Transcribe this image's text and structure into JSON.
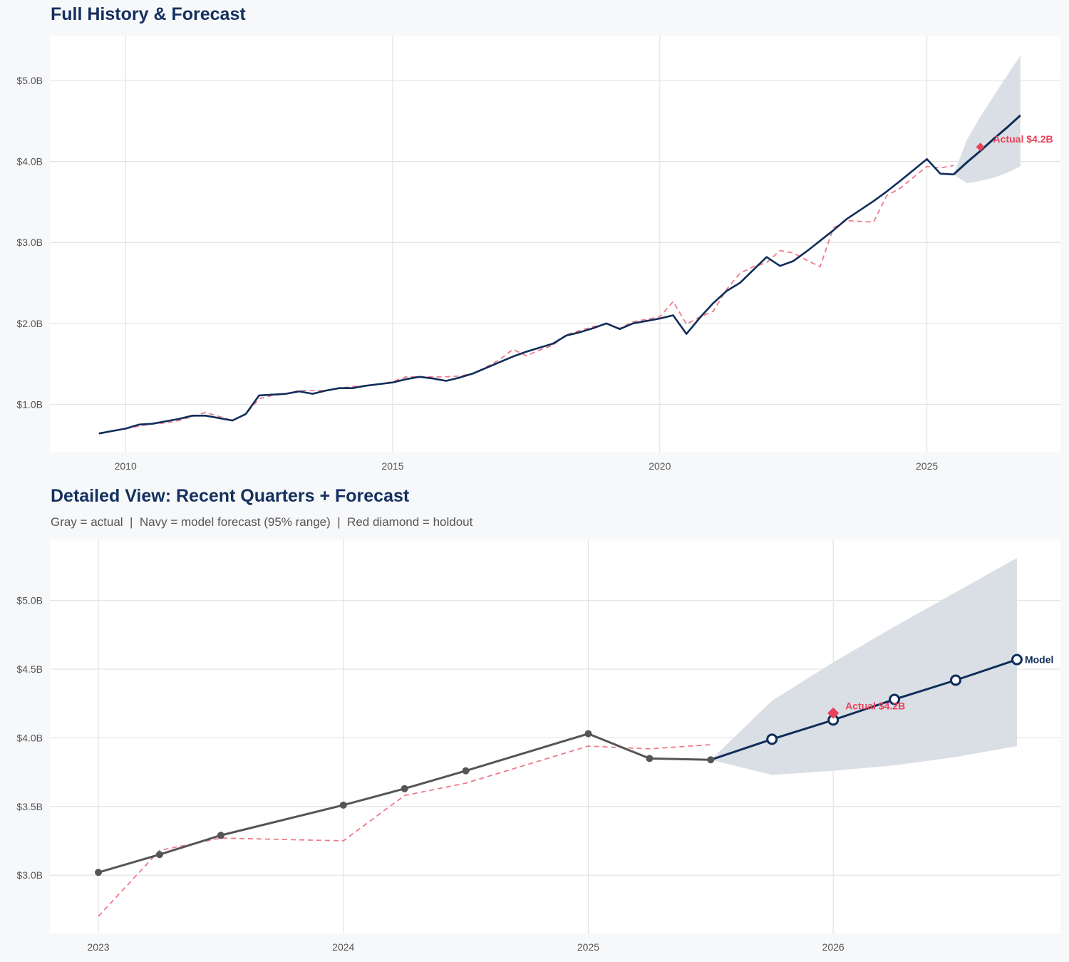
{
  "colors": {
    "navy": "#0f2d5a",
    "gray": "#555555",
    "fit": "#ee7a8a",
    "holdout": "#e8415a",
    "band": "#dadfe5",
    "grid": "#e3e3e3"
  },
  "chart_data": [
    {
      "type": "line",
      "title": "Full History & Forecast",
      "xlim": [
        "2008-08",
        "2027-07"
      ],
      "ylim": [
        0.405,
        5.555
      ],
      "x_ticks": [
        {
          "value": "2010-01",
          "label": "2010"
        },
        {
          "value": "2015-01",
          "label": "2015"
        },
        {
          "value": "2020-01",
          "label": "2020"
        },
        {
          "value": "2025-01",
          "label": "2025"
        }
      ],
      "y_ticks": [
        {
          "value": 1.0,
          "label": "$1.0B"
        },
        {
          "value": 2.0,
          "label": "$2.0B"
        },
        {
          "value": 3.0,
          "label": "$3.0B"
        },
        {
          "value": 4.0,
          "label": "$4.0B"
        },
        {
          "value": 5.0,
          "label": "$5.0B"
        }
      ],
      "grid": true,
      "actual_color": "navy",
      "actual_markers": false,
      "actual": [
        [
          "2009-07",
          0.64
        ],
        [
          "2009-10",
          0.67
        ],
        [
          "2010-01",
          0.7
        ],
        [
          "2010-04",
          0.75
        ],
        [
          "2010-07",
          0.76
        ],
        [
          "2010-10",
          0.79
        ],
        [
          "2011-01",
          0.82
        ],
        [
          "2011-04",
          0.86
        ],
        [
          "2011-07",
          0.86
        ],
        [
          "2011-10",
          0.83
        ],
        [
          "2012-01",
          0.8
        ],
        [
          "2012-04",
          0.88
        ],
        [
          "2012-07",
          1.11
        ],
        [
          "2012-10",
          1.12
        ],
        [
          "2013-01",
          1.13
        ],
        [
          "2013-04",
          1.16
        ],
        [
          "2013-07",
          1.13
        ],
        [
          "2013-10",
          1.17
        ],
        [
          "2014-01",
          1.2
        ],
        [
          "2014-04",
          1.2
        ],
        [
          "2014-07",
          1.23
        ],
        [
          "2014-10",
          1.25
        ],
        [
          "2015-01",
          1.27
        ],
        [
          "2015-04",
          1.31
        ],
        [
          "2015-07",
          1.34
        ],
        [
          "2015-10",
          1.32
        ],
        [
          "2016-01",
          1.29
        ],
        [
          "2016-04",
          1.33
        ],
        [
          "2016-07",
          1.38
        ],
        [
          "2016-10",
          1.45
        ],
        [
          "2017-01",
          1.52
        ],
        [
          "2017-04",
          1.59
        ],
        [
          "2017-07",
          1.65
        ],
        [
          "2017-10",
          1.7
        ],
        [
          "2018-01",
          1.75
        ],
        [
          "2018-04",
          1.85
        ],
        [
          "2018-07",
          1.89
        ],
        [
          "2018-10",
          1.94
        ],
        [
          "2019-01",
          2.0
        ],
        [
          "2019-04",
          1.93
        ],
        [
          "2019-07",
          2.0
        ],
        [
          "2019-10",
          2.03
        ],
        [
          "2020-01",
          2.06
        ],
        [
          "2020-04",
          2.1
        ],
        [
          "2020-07",
          1.87
        ],
        [
          "2020-10",
          2.07
        ],
        [
          "2021-01",
          2.25
        ],
        [
          "2021-04",
          2.4
        ],
        [
          "2021-07",
          2.5
        ],
        [
          "2021-10",
          2.66
        ],
        [
          "2022-01",
          2.82
        ],
        [
          "2022-04",
          2.71
        ],
        [
          "2022-07",
          2.77
        ],
        [
          "2022-10",
          2.89
        ],
        [
          "2023-01",
          3.02
        ],
        [
          "2023-04",
          3.15
        ],
        [
          "2023-07",
          3.29
        ],
        [
          "2024-01",
          3.51
        ],
        [
          "2024-04",
          3.63
        ],
        [
          "2024-07",
          3.76
        ],
        [
          "2025-01",
          4.03
        ],
        [
          "2025-04",
          3.85
        ],
        [
          "2025-07",
          3.84
        ]
      ],
      "fitted": [
        [
          "2010-01",
          0.7
        ],
        [
          "2010-04",
          0.73
        ],
        [
          "2010-07",
          0.76
        ],
        [
          "2010-10",
          0.77
        ],
        [
          "2011-01",
          0.8
        ],
        [
          "2011-04",
          0.85
        ],
        [
          "2011-07",
          0.9
        ],
        [
          "2011-10",
          0.85
        ],
        [
          "2012-01",
          0.8
        ],
        [
          "2012-04",
          0.88
        ],
        [
          "2012-07",
          1.07
        ],
        [
          "2012-10",
          1.11
        ],
        [
          "2013-01",
          1.13
        ],
        [
          "2013-04",
          1.17
        ],
        [
          "2013-07",
          1.17
        ],
        [
          "2013-10",
          1.17
        ],
        [
          "2014-01",
          1.2
        ],
        [
          "2014-04",
          1.22
        ],
        [
          "2014-07",
          1.23
        ],
        [
          "2014-10",
          1.25
        ],
        [
          "2015-01",
          1.28
        ],
        [
          "2015-04",
          1.34
        ],
        [
          "2015-07",
          1.34
        ],
        [
          "2015-10",
          1.34
        ],
        [
          "2016-01",
          1.34
        ],
        [
          "2016-04",
          1.35
        ],
        [
          "2016-07",
          1.38
        ],
        [
          "2016-10",
          1.46
        ],
        [
          "2017-01",
          1.55
        ],
        [
          "2017-04",
          1.68
        ],
        [
          "2017-07",
          1.6
        ],
        [
          "2017-10",
          1.67
        ],
        [
          "2018-01",
          1.73
        ],
        [
          "2018-04",
          1.86
        ],
        [
          "2018-07",
          1.91
        ],
        [
          "2018-10",
          1.96
        ],
        [
          "2019-01",
          1.99
        ],
        [
          "2019-04",
          1.94
        ],
        [
          "2019-07",
          2.02
        ],
        [
          "2019-10",
          2.05
        ],
        [
          "2020-01",
          2.08
        ],
        [
          "2020-04",
          2.27
        ],
        [
          "2020-07",
          1.99
        ],
        [
          "2020-10",
          2.08
        ],
        [
          "2021-01",
          2.15
        ],
        [
          "2021-04",
          2.42
        ],
        [
          "2021-07",
          2.62
        ],
        [
          "2021-10",
          2.7
        ],
        [
          "2022-01",
          2.75
        ],
        [
          "2022-04",
          2.9
        ],
        [
          "2022-07",
          2.87
        ],
        [
          "2022-10",
          2.78
        ],
        [
          "2023-01",
          2.7
        ],
        [
          "2023-04",
          3.18
        ],
        [
          "2023-07",
          3.27
        ],
        [
          "2024-01",
          3.25
        ],
        [
          "2024-04",
          3.58
        ],
        [
          "2024-07",
          3.67
        ],
        [
          "2025-01",
          3.94
        ],
        [
          "2025-04",
          3.92
        ],
        [
          "2025-07",
          3.95
        ]
      ],
      "forecast": {
        "x": [
          "2025-07",
          "2025-10",
          "2026-01",
          "2026-04",
          "2026-07",
          "2026-10"
        ],
        "y": [
          3.84,
          3.99,
          4.13,
          4.28,
          4.42,
          4.57
        ],
        "lower": [
          3.84,
          3.73,
          3.76,
          3.8,
          3.86,
          3.94
        ],
        "upper": [
          3.84,
          4.27,
          4.55,
          4.81,
          5.06,
          5.31
        ],
        "markers": false
      },
      "holdout": {
        "x": "2026-01",
        "y": 4.18,
        "label": "Actual $4.2B"
      }
    },
    {
      "type": "line",
      "title": "Detailed View: Recent Quarters + Forecast",
      "subtitle": "Gray = actual  |  Navy = model forecast (95% range)  |  Red diamond = holdout",
      "xlim": [
        "2022-10-20",
        "2026-12-05"
      ],
      "ylim": [
        2.575,
        5.445
      ],
      "x_ticks": [
        {
          "value": "2023-01",
          "label": "2023"
        },
        {
          "value": "2024-01",
          "label": "2024"
        },
        {
          "value": "2025-01",
          "label": "2025"
        },
        {
          "value": "2026-01",
          "label": "2026"
        }
      ],
      "y_ticks": [
        {
          "value": 3.0,
          "label": "$3.0B"
        },
        {
          "value": 3.5,
          "label": "$3.5B"
        },
        {
          "value": 4.0,
          "label": "$4.0B"
        },
        {
          "value": 4.5,
          "label": "$4.5B"
        },
        {
          "value": 5.0,
          "label": "$5.0B"
        }
      ],
      "grid": true,
      "actual_color": "gray",
      "actual_markers": true,
      "actual": [
        [
          "2023-01",
          3.02
        ],
        [
          "2023-04",
          3.15
        ],
        [
          "2023-07",
          3.29
        ],
        [
          "2024-01",
          3.51
        ],
        [
          "2024-04",
          3.63
        ],
        [
          "2024-07",
          3.76
        ],
        [
          "2025-01",
          4.03
        ],
        [
          "2025-04",
          3.85
        ],
        [
          "2025-07",
          3.84
        ]
      ],
      "fitted": [
        [
          "2023-01",
          2.7
        ],
        [
          "2023-04",
          3.18
        ],
        [
          "2023-07",
          3.27
        ],
        [
          "2024-01",
          3.25
        ],
        [
          "2024-04",
          3.58
        ],
        [
          "2024-07",
          3.67
        ],
        [
          "2025-01",
          3.94
        ],
        [
          "2025-04",
          3.92
        ],
        [
          "2025-07",
          3.95
        ]
      ],
      "forecast": {
        "x": [
          "2025-07",
          "2025-10",
          "2026-01",
          "2026-04",
          "2026-07",
          "2026-10"
        ],
        "y": [
          3.84,
          3.99,
          4.13,
          4.28,
          4.42,
          4.57
        ],
        "lower": [
          3.84,
          3.73,
          3.76,
          3.8,
          3.86,
          3.94
        ],
        "upper": [
          3.84,
          4.27,
          4.55,
          4.81,
          5.06,
          5.31
        ],
        "markers": true,
        "label": "Model"
      },
      "holdout": {
        "x": "2026-01",
        "y": 4.18,
        "label": "Actual $4.2B"
      }
    }
  ]
}
